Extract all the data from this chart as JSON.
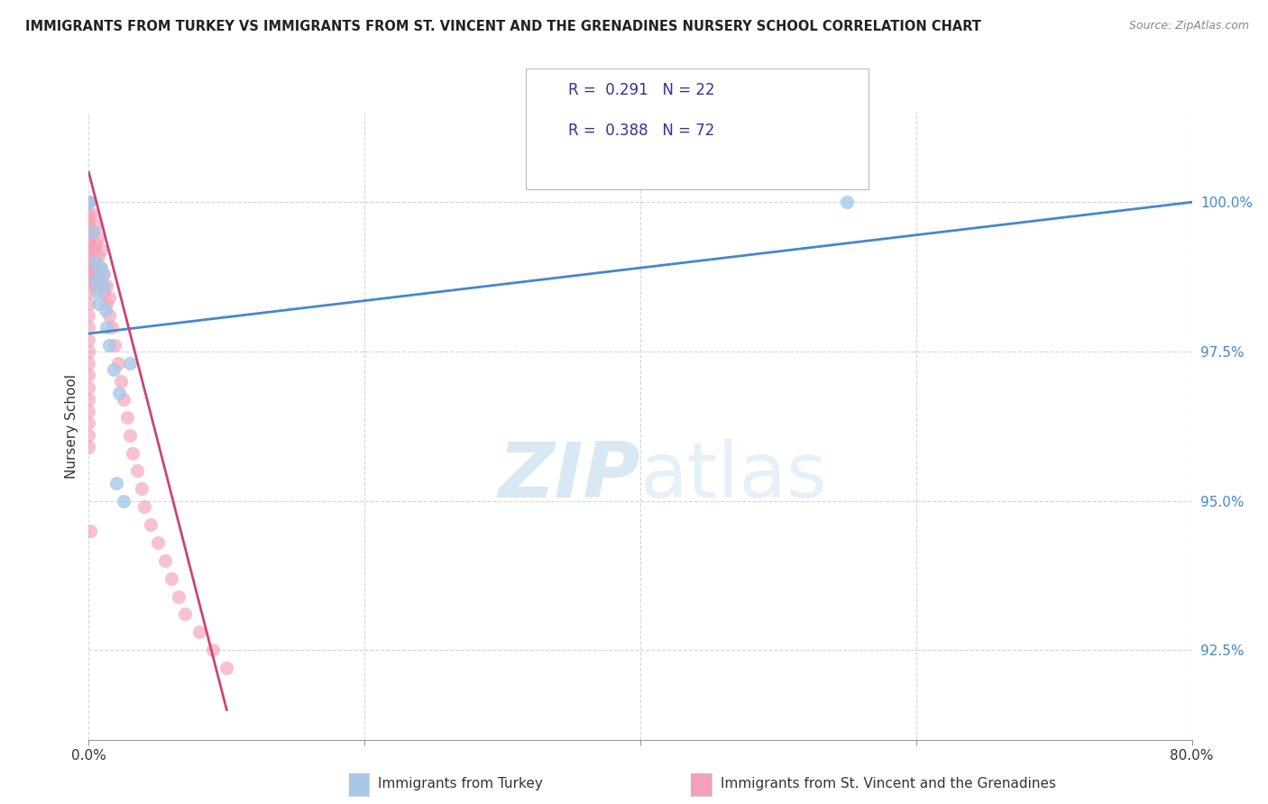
{
  "title": "IMMIGRANTS FROM TURKEY VS IMMIGRANTS FROM ST. VINCENT AND THE GRENADINES NURSERY SCHOOL CORRELATION CHART",
  "source": "Source: ZipAtlas.com",
  "ylabel": "Nursery School",
  "R_blue": 0.291,
  "N_blue": 22,
  "R_pink": 0.388,
  "N_pink": 72,
  "color_blue": "#a8c8e8",
  "color_pink": "#f4a0b8",
  "line_color_blue": "#4488cc",
  "line_color_pink": "#cc4477",
  "watermark_zip": "ZIP",
  "watermark_atlas": "atlas",
  "legend_label_blue": "Immigrants from Turkey",
  "legend_label_pink": "Immigrants from St. Vincent and the Grenadines",
  "blue_scatter_x": [
    0.0,
    0.0,
    0.0,
    0.0,
    0.0,
    0.5,
    0.5,
    0.6,
    0.7,
    1.0,
    1.1,
    1.2,
    1.3,
    1.5,
    2.0,
    2.5,
    3.0,
    55.0,
    0.3,
    0.8,
    1.8,
    2.2
  ],
  "blue_scatter_y": [
    100.0,
    100.0,
    100.0,
    100.0,
    100.0,
    99.0,
    98.7,
    98.5,
    98.3,
    98.8,
    98.6,
    98.2,
    97.9,
    97.6,
    95.3,
    95.0,
    97.3,
    100.0,
    99.5,
    98.9,
    97.2,
    96.8
  ],
  "pink_scatter_x": [
    0.0,
    0.0,
    0.0,
    0.0,
    0.0,
    0.0,
    0.0,
    0.0,
    0.0,
    0.0,
    0.0,
    0.0,
    0.0,
    0.0,
    0.0,
    0.0,
    0.0,
    0.0,
    0.0,
    0.0,
    0.0,
    0.0,
    0.0,
    0.0,
    0.0,
    0.0,
    0.0,
    0.0,
    0.0,
    0.0,
    0.3,
    0.3,
    0.3,
    0.3,
    0.3,
    0.5,
    0.5,
    0.5,
    0.5,
    0.7,
    0.7,
    0.7,
    0.9,
    0.9,
    0.9,
    1.1,
    1.1,
    1.3,
    1.3,
    1.5,
    1.5,
    1.7,
    1.9,
    2.1,
    2.3,
    2.5,
    2.8,
    3.0,
    3.2,
    3.5,
    3.8,
    4.0,
    4.5,
    5.0,
    5.5,
    6.0,
    6.5,
    7.0,
    8.0,
    9.0,
    10.0,
    0.1
  ],
  "pink_scatter_y": [
    100.0,
    100.0,
    100.0,
    100.0,
    99.8,
    99.7,
    99.6,
    99.5,
    99.4,
    99.3,
    99.2,
    99.1,
    99.0,
    98.9,
    98.8,
    98.7,
    98.5,
    98.3,
    98.1,
    97.9,
    97.7,
    97.5,
    97.3,
    97.1,
    96.9,
    96.7,
    96.5,
    96.3,
    96.1,
    95.9,
    99.8,
    99.5,
    99.2,
    98.9,
    98.6,
    99.6,
    99.3,
    99.0,
    98.7,
    99.4,
    99.1,
    98.8,
    99.2,
    98.9,
    98.6,
    98.8,
    98.5,
    98.6,
    98.3,
    98.4,
    98.1,
    97.9,
    97.6,
    97.3,
    97.0,
    96.7,
    96.4,
    96.1,
    95.8,
    95.5,
    95.2,
    94.9,
    94.6,
    94.3,
    94.0,
    93.7,
    93.4,
    93.1,
    92.8,
    92.5,
    92.2,
    94.5
  ],
  "blue_line_x": [
    0.0,
    80.0
  ],
  "blue_line_y": [
    97.8,
    100.0
  ],
  "pink_line_x": [
    0.0,
    10.0
  ],
  "pink_line_y": [
    100.5,
    91.5
  ],
  "xmin": 0.0,
  "xmax": 80.0,
  "ymin": 91.0,
  "ymax": 101.5,
  "ytick_positions": [
    92.5,
    95.0,
    97.5,
    100.0
  ],
  "ytick_labels": [
    "92.5%",
    "95.0%",
    "97.5%",
    "100.0%"
  ],
  "xtick_label_left": "0.0%",
  "xtick_label_right": "80.0%"
}
